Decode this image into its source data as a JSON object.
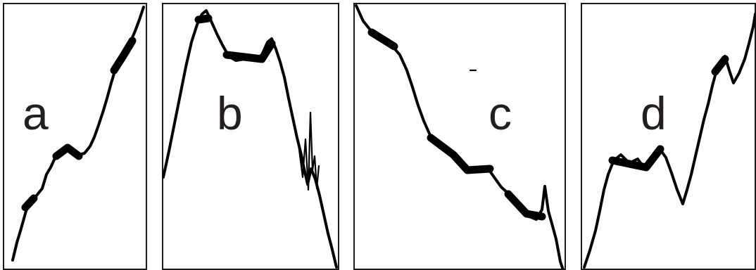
{
  "panels": [
    {
      "id": "a",
      "label": "a"
    },
    {
      "id": "b",
      "label": "b"
    },
    {
      "id": "c",
      "label": "c"
    },
    {
      "id": "d",
      "label": "d"
    }
  ],
  "colors": {
    "frame": "#1a1a1a",
    "trace": "#000000",
    "label": "#231f20",
    "background": "#ffffff"
  }
}
